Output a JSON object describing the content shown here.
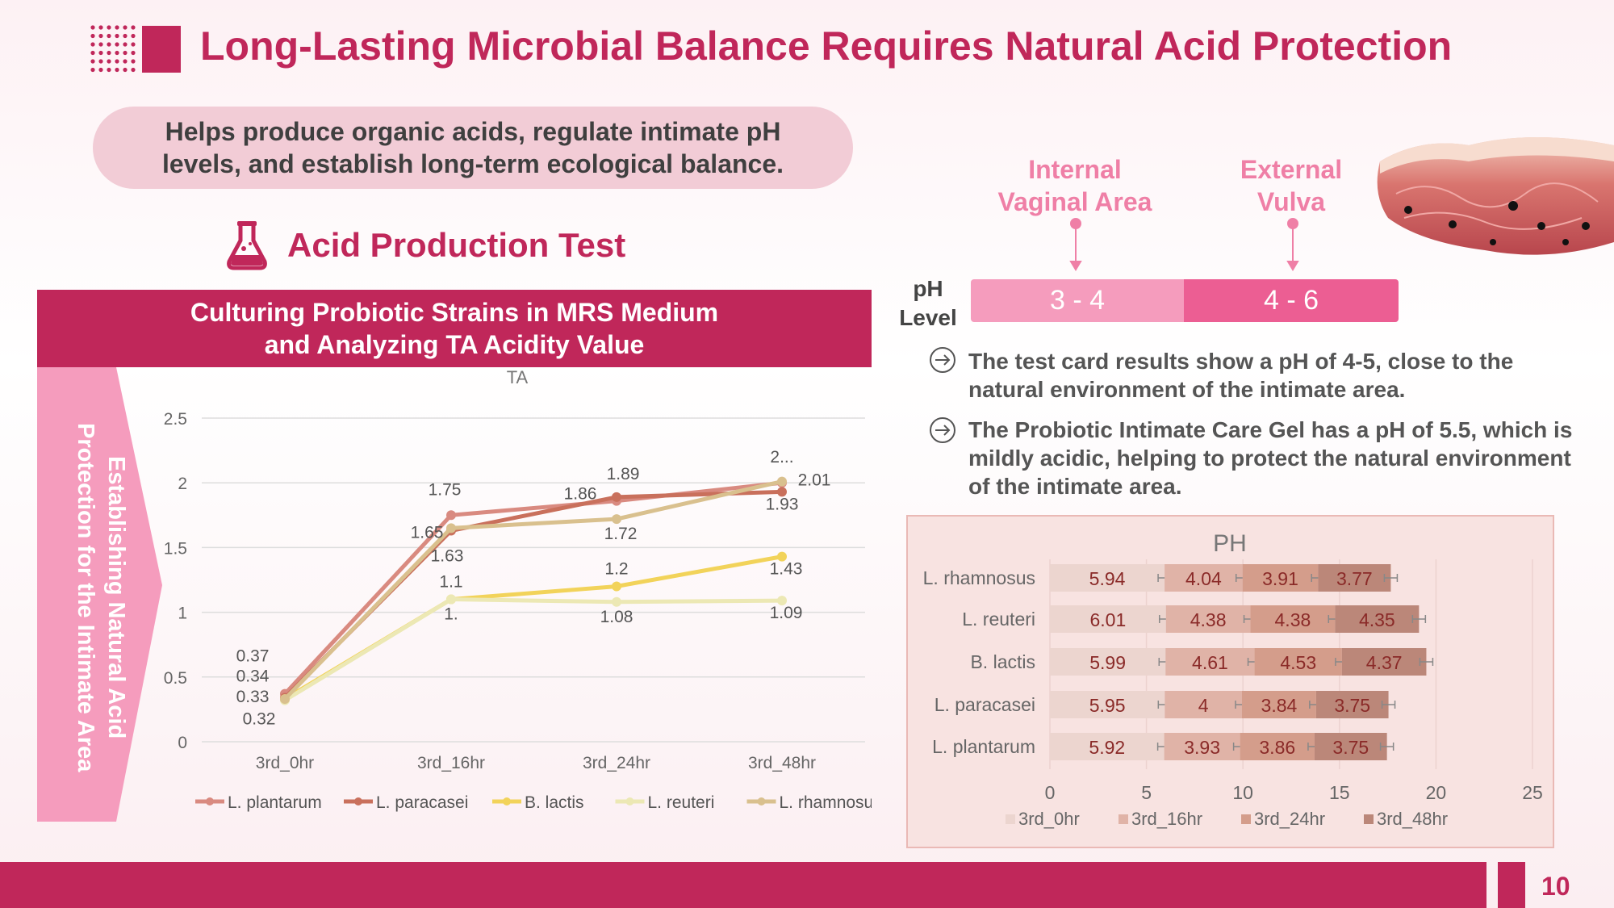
{
  "header": {
    "title": "Long-Lasting Microbial Balance Requires Natural Acid Protection",
    "accent": "#c0275a"
  },
  "intro": {
    "line1": "Helps produce organic acids, regulate intimate pH",
    "line2": "levels, and establish long-term ecological balance."
  },
  "section": {
    "title": "Acid Production Test",
    "icon": "flask-icon"
  },
  "banner": {
    "line1": "Culturing Probiotic Strains in MRS Medium",
    "line2": "and Analyzing TA Acidity Value"
  },
  "side_label": {
    "line1": "Establishing Natural Acid",
    "line2": "Protection for the Intimate Area"
  },
  "ph": {
    "label1": "pH",
    "label2": "Level",
    "internal": {
      "line1": "Internal",
      "line2": "Vaginal Area",
      "range": "3 - 4",
      "color": "#f59cbd"
    },
    "external": {
      "line1": "External",
      "line2": "Vulva",
      "range": "4 - 6",
      "color": "#ec5e93"
    }
  },
  "bullets": [
    {
      "text": "The test card results show a pH of 4-5, close to the natural environment of the intimate area."
    },
    {
      "text": "The Probiotic Intimate Care Gel has a pH of 5.5, which is mildly acidic, helping to protect the natural environment of the intimate area."
    }
  ],
  "page_number": "10",
  "chart_data": [
    {
      "type": "line",
      "title": "TA",
      "categories": [
        "3rd_0hr",
        "3rd_16hr",
        "3rd_24hr",
        "3rd_48hr"
      ],
      "ylim": [
        0,
        2.5
      ],
      "yticks": [
        "0",
        "0.5",
        "1",
        "1.5",
        "2",
        "2.5"
      ],
      "grid": true,
      "legend": "bottom",
      "series": [
        {
          "name": "L. plantarum",
          "values": [
            0.37,
            1.75,
            1.86,
            2.0
          ],
          "labels": [
            "0.37",
            "1.75",
            "1.86",
            "2..."
          ],
          "color": "#d98a80"
        },
        {
          "name": "L. paracasei",
          "values": [
            0.34,
            1.63,
            1.89,
            1.93
          ],
          "labels": [
            "0.34",
            "1.63",
            "1.89",
            "1.93"
          ],
          "color": "#c9705c"
        },
        {
          "name": "B. lactis",
          "values": [
            0.33,
            1.1,
            1.2,
            1.43
          ],
          "labels": [
            "0.33",
            "1.1",
            "1.2",
            "1.43"
          ],
          "color": "#f2d35a"
        },
        {
          "name": "L. reuteri",
          "values": [
            0.32,
            1.1,
            1.08,
            1.09
          ],
          "labels": [
            "0.32",
            "1.",
            "1.08",
            "1.09"
          ],
          "color": "#ece8b4"
        },
        {
          "name": "L. rhamnosus",
          "values": [
            0.33,
            1.65,
            1.72,
            2.01
          ],
          "labels": [
            "",
            "1.65",
            "1.72",
            "2.01"
          ],
          "color": "#d9c08e"
        }
      ]
    },
    {
      "type": "bar",
      "orientation": "horizontal",
      "stacked": true,
      "title": "PH",
      "categories": [
        "L. rhamnosus",
        "L. reuteri",
        "B. lactis",
        "L. paracasei",
        "L. plantarum"
      ],
      "xlim": [
        0,
        25
      ],
      "xticks": [
        "0",
        "5",
        "10",
        "15",
        "20",
        "25"
      ],
      "legend": "bottom",
      "error_bars": true,
      "series": [
        {
          "name": "3rd_0hr",
          "values": [
            5.94,
            6.01,
            5.99,
            5.95,
            5.92
          ],
          "color": "#ecd5cf"
        },
        {
          "name": "3rd_16hr",
          "values": [
            4.04,
            4.38,
            4.61,
            4,
            3.93
          ],
          "color": "#e0b3a7"
        },
        {
          "name": "3rd_24hr",
          "values": [
            3.91,
            4.38,
            4.53,
            3.84,
            3.86
          ],
          "color": "#d49d8b"
        },
        {
          "name": "3rd_48hr",
          "values": [
            3.77,
            4.35,
            4.37,
            3.75,
            3.75
          ],
          "color": "#bb8779"
        }
      ]
    }
  ]
}
